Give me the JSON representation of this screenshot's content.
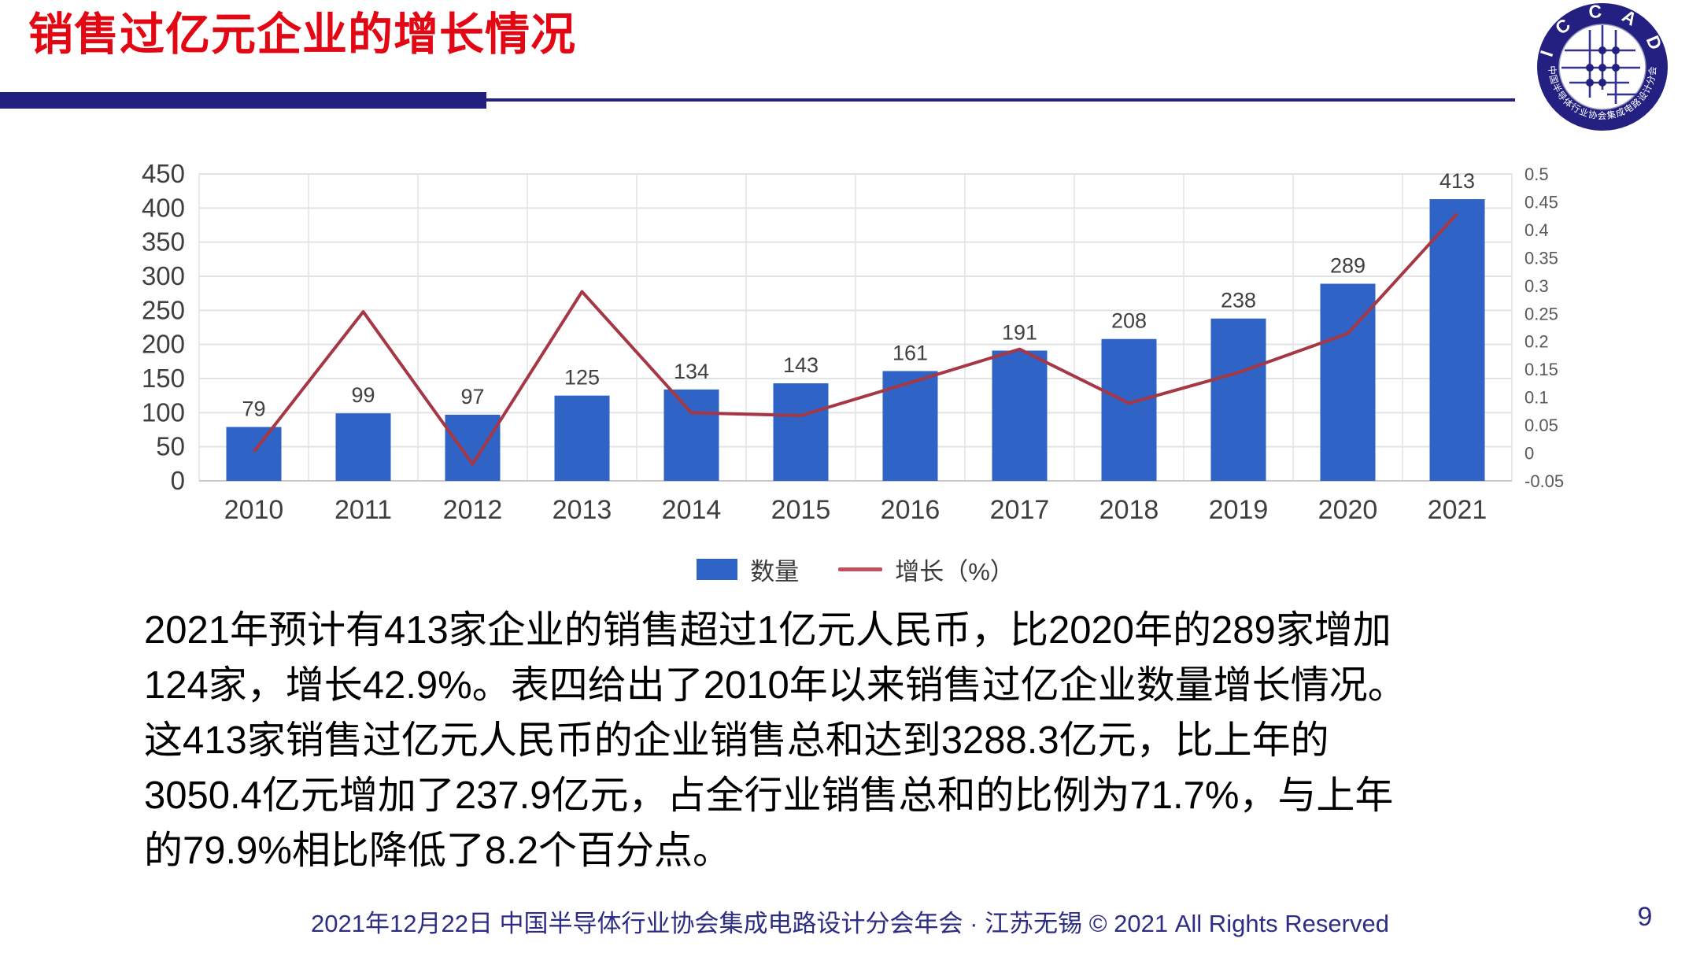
{
  "slide": {
    "title": "销售过亿元企业的增长情况",
    "footer": "2021年12月22日 中国半导体行业协会集成电路设计分会年会 · 江苏无锡 © 2021 All Rights Reserved",
    "page_number": "9"
  },
  "logo": {
    "top_text": "ICCAD",
    "bottom_text": "中国半导体行业协会集成电路设计分会",
    "ring_color": "#232082"
  },
  "body_lines": [
    "2021年预计有413家企业的销售超过1亿元人民币，比2020年的289家增加",
    "124家，增长42.9%。表四给出了2010年以来销售过亿企业数量增长情况。",
    "这413家销售过亿元人民币的企业销售总和达到3288.3亿元，比上年的",
    "3050.4亿元增加了237.9亿元，占全行业销售总和的比例为71.7%，与上年",
    "的79.9%相比降低了8.2个百分点。"
  ],
  "chart_data": {
    "type": "bar",
    "subtype": "combo-bar-line-dual-axis",
    "categories": [
      "2010",
      "2011",
      "2012",
      "2013",
      "2014",
      "2015",
      "2016",
      "2017",
      "2018",
      "2019",
      "2020",
      "2021"
    ],
    "series": [
      {
        "name": "数量",
        "type": "bar",
        "axis": "left",
        "color": "#2f63c5",
        "values": [
          79,
          99,
          97,
          125,
          134,
          143,
          161,
          191,
          208,
          238,
          289,
          413
        ],
        "data_labels": [
          "79",
          "99",
          "97",
          "125",
          "134",
          "143",
          "161",
          "191",
          "208",
          "238",
          "289",
          "413"
        ]
      },
      {
        "name": "增长（%）",
        "type": "line",
        "axis": "right",
        "color": "#a53844",
        "values": [
          0.002,
          0.253,
          -0.02,
          0.289,
          0.072,
          0.067,
          0.126,
          0.186,
          0.089,
          0.144,
          0.214,
          0.429
        ]
      }
    ],
    "left_axis": {
      "min": 0,
      "max": 450,
      "step": 50,
      "ticks": [
        "450",
        "400",
        "350",
        "300",
        "250",
        "200",
        "150",
        "100",
        "50",
        "0"
      ]
    },
    "right_axis": {
      "min": -0.05,
      "max": 0.5,
      "step": 0.05,
      "ticks": [
        "0.5",
        "0.45",
        "0.4",
        "0.35",
        "0.3",
        "0.25",
        "0.2",
        "0.15",
        "0.1",
        "0.05",
        "0",
        "-0.05"
      ]
    },
    "grid": true,
    "legend_position": "bottom",
    "title": "",
    "xlabel": "",
    "ylabel": ""
  }
}
